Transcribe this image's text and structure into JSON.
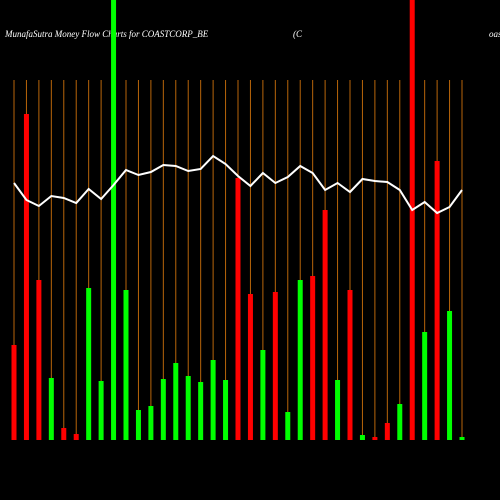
{
  "chart_data": {
    "type": "bar",
    "title": "MunafaSutra  Money Flow  Charts for COASTCORP_BE",
    "title_mid": "(C",
    "title_right": "oas",
    "ylim": [
      0,
      440
    ],
    "values": [
      95,
      326,
      160,
      62,
      12,
      6,
      152,
      59,
      440,
      150,
      30,
      34,
      61,
      77,
      64,
      58,
      80,
      60,
      262,
      146,
      90,
      148,
      28,
      160,
      164,
      230,
      60,
      150,
      5,
      3,
      17,
      36,
      440,
      108,
      279,
      129,
      3
    ],
    "colors": [
      "#ff0000",
      "#ff0000",
      "#ff0000",
      "#00ff00",
      "#ff0000",
      "#ff0000",
      "#00ff00",
      "#00ff00",
      "#00ff00",
      "#00ff00",
      "#00ff00",
      "#00ff00",
      "#00ff00",
      "#00ff00",
      "#00ff00",
      "#00ff00",
      "#00ff00",
      "#00ff00",
      "#ff0000",
      "#ff0000",
      "#00ff00",
      "#ff0000",
      "#00ff00",
      "#00ff00",
      "#ff0000",
      "#ff0000",
      "#00ff00",
      "#ff0000",
      "#00ff00",
      "#ff0000",
      "#ff0000",
      "#00ff00",
      "#ff0000",
      "#00ff00",
      "#ff0000",
      "#00ff00",
      "#00ff00"
    ],
    "line_values": [
      257,
      240,
      234,
      244,
      242,
      237,
      251,
      241,
      255,
      270,
      265,
      268,
      275,
      274,
      269,
      271,
      284,
      276,
      264,
      254,
      267,
      257,
      263,
      274,
      267,
      250,
      257,
      248,
      261,
      259,
      258,
      250,
      230,
      238,
      227,
      233,
      250
    ],
    "line_color": "#ffffff",
    "guide_color": "#b8650a"
  }
}
